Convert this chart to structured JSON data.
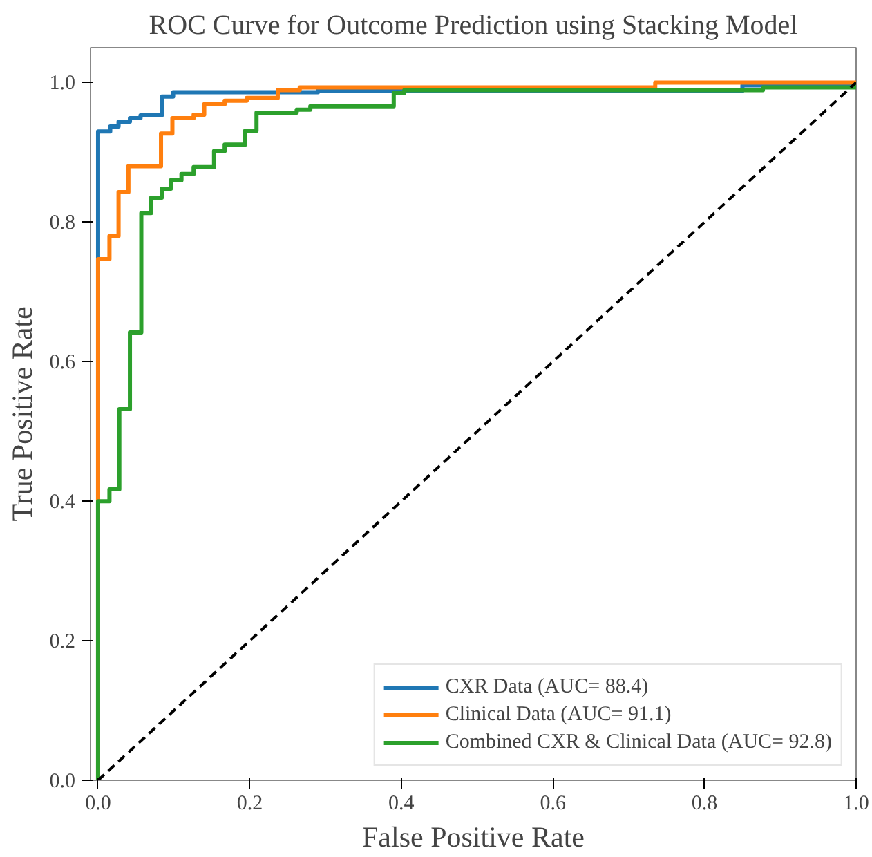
{
  "chart_data": {
    "type": "line",
    "title": "ROC Curve for Outcome Prediction using Stacking Model",
    "xlabel": "False Positive Rate",
    "ylabel": "True Positive Rate",
    "xlim": [
      -0.01,
      1.0
    ],
    "ylim": [
      0.0,
      1.05
    ],
    "xticks": [
      {
        "value": 0.0,
        "label": "0.0"
      },
      {
        "value": 0.2,
        "label": "0.2"
      },
      {
        "value": 0.4,
        "label": "0.4"
      },
      {
        "value": 0.6,
        "label": "0.6"
      },
      {
        "value": 0.8,
        "label": "0.8"
      },
      {
        "value": 1.0,
        "label": "1.0"
      }
    ],
    "yticks": [
      {
        "value": 0.0,
        "label": "0.0"
      },
      {
        "value": 0.2,
        "label": "0.2"
      },
      {
        "value": 0.4,
        "label": "0.4"
      },
      {
        "value": 0.6,
        "label": "0.6"
      },
      {
        "value": 0.8,
        "label": "0.8"
      },
      {
        "value": 1.0,
        "label": "1.0"
      }
    ],
    "grid": false,
    "legend": "bottom right",
    "marker": "none",
    "series": [
      {
        "name": "CXR Data (AUC= 88.4)",
        "color": "#1f77b4",
        "line_style": "solid",
        "x": [
          0,
          0,
          0.016,
          0.016,
          0.027,
          0.027,
          0.042,
          0.042,
          0.056,
          0.056,
          0.084,
          0.084,
          0.099,
          0.099,
          0.29,
          0.29,
          0.85,
          0.85,
          1.0,
          1.0
        ],
        "values": [
          0,
          0.93,
          0.93,
          0.937,
          0.937,
          0.944,
          0.944,
          0.949,
          0.949,
          0.953,
          0.953,
          0.98,
          0.98,
          0.986,
          0.986,
          0.988,
          0.988,
          0.996,
          0.996,
          1.0
        ]
      },
      {
        "name": "Clinical Data (AUC= 91.1)",
        "color": "#ff7f0e",
        "line_style": "solid",
        "x": [
          0,
          0,
          0.015,
          0.015,
          0.027,
          0.027,
          0.04,
          0.04,
          0.083,
          0.083,
          0.098,
          0.098,
          0.126,
          0.126,
          0.14,
          0.14,
          0.167,
          0.167,
          0.196,
          0.196,
          0.237,
          0.237,
          0.266,
          0.266,
          0.735,
          0.735,
          1.0
        ],
        "values": [
          0,
          0.747,
          0.747,
          0.78,
          0.78,
          0.843,
          0.843,
          0.88,
          0.88,
          0.927,
          0.927,
          0.949,
          0.949,
          0.954,
          0.954,
          0.969,
          0.969,
          0.974,
          0.974,
          0.978,
          0.978,
          0.989,
          0.989,
          0.993,
          0.993,
          1.0,
          1.0
        ]
      },
      {
        "name": "Combined CXR & Clinical Data (AUC= 92.8)",
        "color": "#2ca02c",
        "line_style": "solid",
        "x": [
          0,
          0,
          0.015,
          0.015,
          0.028,
          0.028,
          0.042,
          0.042,
          0.057,
          0.057,
          0.07,
          0.07,
          0.084,
          0.084,
          0.096,
          0.096,
          0.11,
          0.11,
          0.126,
          0.126,
          0.153,
          0.153,
          0.167,
          0.167,
          0.194,
          0.194,
          0.209,
          0.209,
          0.262,
          0.262,
          0.28,
          0.28,
          0.39,
          0.39,
          0.404,
          0.404,
          0.877,
          0.877,
          1.0,
          1.0
        ],
        "values": [
          0,
          0.4,
          0.4,
          0.417,
          0.417,
          0.532,
          0.532,
          0.642,
          0.642,
          0.813,
          0.813,
          0.835,
          0.835,
          0.848,
          0.848,
          0.86,
          0.86,
          0.869,
          0.869,
          0.879,
          0.879,
          0.902,
          0.902,
          0.911,
          0.911,
          0.931,
          0.931,
          0.957,
          0.957,
          0.961,
          0.961,
          0.966,
          0.966,
          0.985,
          0.985,
          0.989,
          0.989,
          0.993,
          0.993,
          1.0
        ]
      },
      {
        "color": "#000000",
        "line_style": "dashed",
        "x": [
          0,
          1
        ],
        "values": [
          0,
          1
        ]
      }
    ]
  }
}
